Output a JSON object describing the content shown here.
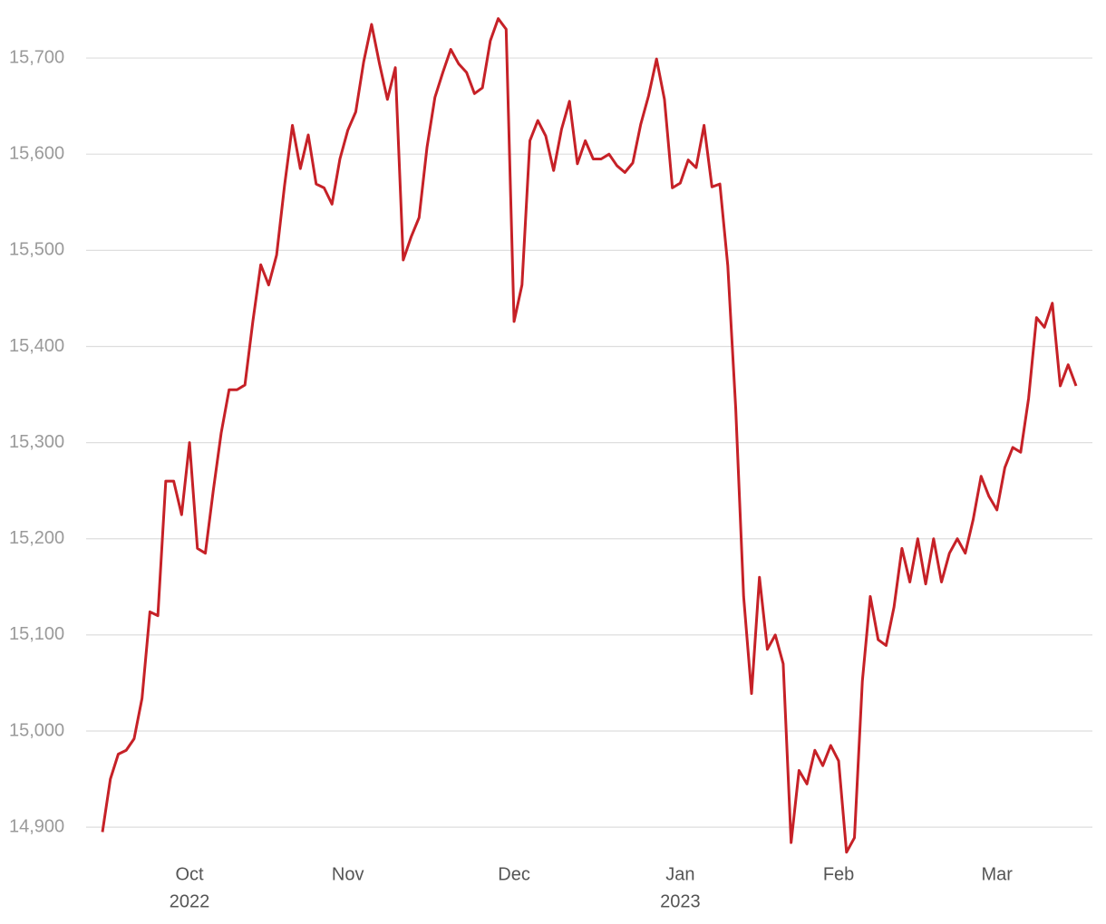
{
  "chart_data": {
    "type": "line",
    "categories": [
      null,
      null,
      null,
      null,
      null,
      null,
      null,
      null,
      null,
      null,
      null,
      [
        "Oct",
        "2022"
      ],
      null,
      null,
      null,
      null,
      null,
      null,
      null,
      null,
      null,
      null,
      null,
      null,
      null,
      null,
      null,
      null,
      null,
      null,
      null,
      [
        "Nov"
      ],
      null,
      null,
      null,
      null,
      null,
      null,
      null,
      null,
      null,
      null,
      null,
      null,
      null,
      null,
      null,
      null,
      null,
      null,
      null,
      null,
      [
        "Dec"
      ],
      null,
      null,
      null,
      null,
      null,
      null,
      null,
      null,
      null,
      null,
      null,
      null,
      null,
      null,
      null,
      null,
      null,
      null,
      null,
      null,
      [
        "Jan",
        "2023"
      ],
      null,
      null,
      null,
      null,
      null,
      null,
      null,
      null,
      null,
      null,
      null,
      null,
      null,
      null,
      null,
      null,
      null,
      null,
      null,
      [
        "Feb"
      ],
      null,
      null,
      null,
      null,
      null,
      null,
      null,
      null,
      null,
      null,
      null,
      null,
      null,
      null,
      null,
      null,
      null,
      null,
      null,
      [
        "Mar"
      ],
      null,
      null,
      null,
      null,
      null,
      null,
      null,
      null,
      null,
      null
    ],
    "series": [
      {
        "color": "#c62127",
        "values": [
          14895,
          14950,
          14976,
          14980,
          14992,
          15034,
          15124,
          15120,
          15260,
          15260,
          15225,
          15300,
          15190,
          15185,
          15250,
          15310,
          15355,
          15355,
          15360,
          15426,
          15485,
          15464,
          15495,
          15567,
          15630,
          15585,
          15620,
          15569,
          15565,
          15548,
          15595,
          15625,
          15644,
          15696,
          15735,
          15694,
          15657,
          15690,
          15490,
          15514,
          15534,
          15607,
          15659,
          15685,
          15709,
          15694,
          15685,
          15663,
          15669,
          15718,
          15741,
          15730,
          15426,
          15464,
          15614,
          15635,
          15619,
          15583,
          15626,
          15655,
          15590,
          15614,
          15595,
          15595,
          15600,
          15588,
          15581,
          15591,
          15631,
          15661,
          15699,
          15657,
          15565,
          15570,
          15594,
          15586,
          15630,
          15566,
          15569,
          15484,
          15336,
          15140,
          15039,
          15160,
          15085,
          15100,
          15070,
          14884,
          14959,
          14945,
          14980,
          14964,
          14985,
          14969,
          14874,
          14889,
          15052,
          15140,
          15095,
          15089,
          15129,
          15190,
          15155,
          15200,
          15153,
          15200,
          15155,
          15185,
          15200,
          15185,
          15220,
          15265,
          15244,
          15230,
          15274,
          15295,
          15290,
          15346,
          15430,
          15420,
          15445,
          15359,
          15381,
          15359
        ]
      }
    ],
    "ylim": [
      14870,
      15750
    ],
    "yticks": [
      {
        "value": 14900,
        "label": "14,900"
      },
      {
        "value": 15000,
        "label": "15,000"
      },
      {
        "value": 15100,
        "label": "15,100"
      },
      {
        "value": 15200,
        "label": "15,200"
      },
      {
        "value": 15300,
        "label": "15,300"
      },
      {
        "value": 15400,
        "label": "15,400"
      },
      {
        "value": 15500,
        "label": "15,500"
      },
      {
        "value": 15600,
        "label": "15,600"
      },
      {
        "value": 15700,
        "label": "15,700"
      }
    ],
    "grid": true
  }
}
